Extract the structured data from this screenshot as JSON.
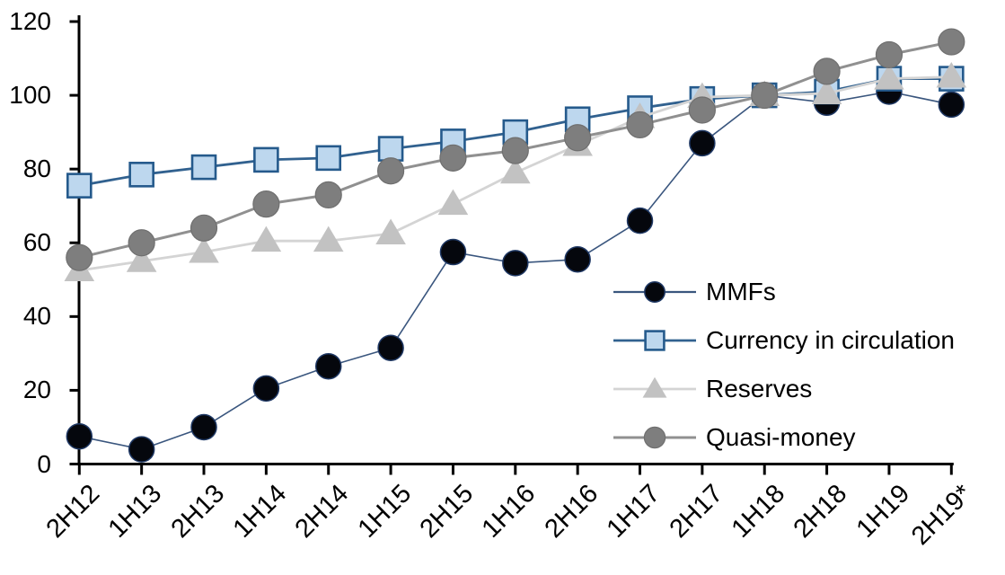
{
  "page": {
    "background": "#ffffff"
  },
  "chart_data": {
    "type": "line",
    "title": "",
    "grid": false,
    "axis_color": "#000000",
    "categories": [
      "2H12",
      "1H13",
      "2H13",
      "1H14",
      "2H14",
      "1H15",
      "2H15",
      "1H16",
      "2H16",
      "1H17",
      "2H17",
      "1H18",
      "2H18",
      "1H19",
      "2H19*"
    ],
    "series": [
      {
        "name": "MMFs",
        "marker": "circle",
        "line_color": "#3A567E",
        "line_width": 1.6,
        "marker_fill": "#05070D",
        "marker_stroke": "#1F3864",
        "marker_stroke_width": 1.5,
        "marker_size": 28,
        "values": [
          7.5,
          4,
          10,
          20.5,
          26.5,
          31.5,
          57.5,
          54.5,
          55.5,
          66,
          87,
          100,
          98,
          101,
          97.5
        ]
      },
      {
        "name": "Currency in circulation",
        "marker": "square",
        "line_color": "#31618F",
        "line_width": 2.8,
        "marker_fill": "#BDD7EE",
        "marker_stroke": "#255A8C",
        "marker_stroke_width": 2.6,
        "marker_size": 26,
        "values": [
          75.5,
          78.5,
          80.5,
          82.5,
          83,
          85.5,
          87.5,
          90,
          93.5,
          96.5,
          99,
          100,
          101,
          104.5,
          104.5
        ]
      },
      {
        "name": "Reserves",
        "marker": "triangle",
        "line_color": "#D4D4D4",
        "line_width": 2.8,
        "marker_fill": "#C2C2C2",
        "marker_stroke": "none",
        "marker_stroke_width": 0,
        "marker_size": 30,
        "values": [
          52.5,
          55,
          57.5,
          60.5,
          60.5,
          62.5,
          70.5,
          79,
          86.5,
          94,
          99.5,
          100,
          100.5,
          104.5,
          105
        ]
      },
      {
        "name": "Quasi-money",
        "marker": "circle",
        "line_color": "#909090",
        "line_width": 3,
        "marker_fill": "#7E7E7E",
        "marker_stroke": "#6F6F6F",
        "marker_stroke_width": 1.2,
        "marker_size": 29,
        "values": [
          56,
          60,
          64,
          70.5,
          73,
          79.5,
          83,
          85,
          88.5,
          92,
          96,
          100,
          106.5,
          111,
          114.5
        ]
      }
    ],
    "y_axis": {
      "min": 0,
      "max": 120,
      "step": 20,
      "tick_labels": [
        "0",
        "20",
        "40",
        "60",
        "80",
        "100",
        "120"
      ]
    },
    "x_axis": {
      "label_rotation_deg": -45
    },
    "legend": {
      "position": "inside-right"
    }
  }
}
